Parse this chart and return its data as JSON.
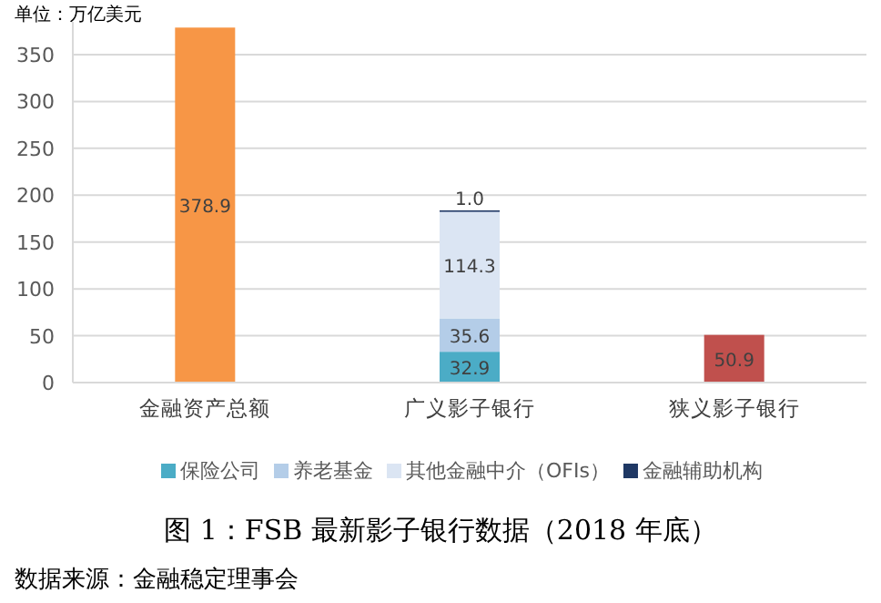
{
  "chart_data": {
    "type": "bar",
    "stacked": true,
    "title": "图 1：FSB 最新影子银行数据（2018 年底）",
    "ylabel": "单位：万亿美元",
    "categories": [
      "金融资产总额",
      "广义影子银行",
      "狭义影子银行"
    ],
    "series": [
      {
        "color": "#f79646",
        "values": [
          378.9,
          null,
          null
        ],
        "value_labels": [
          "378.9",
          null,
          null
        ]
      },
      {
        "name": "保险公司",
        "color": "#4bacc6",
        "values": [
          null,
          32.9,
          null
        ],
        "value_labels": [
          null,
          "32.9",
          null
        ]
      },
      {
        "name": "养老基金",
        "color": "#b4cde8",
        "values": [
          null,
          35.6,
          null
        ],
        "value_labels": [
          null,
          "35.6",
          null
        ]
      },
      {
        "name": "其他金融中介（OFIs）",
        "color": "#dbe5f3",
        "values": [
          null,
          114.3,
          null
        ],
        "value_labels": [
          null,
          "114.3",
          null
        ]
      },
      {
        "name": "金融辅助机构",
        "color": "#1f3864",
        "values": [
          null,
          1.0,
          null
        ],
        "value_labels": [
          null,
          "1.0",
          null
        ]
      },
      {
        "color": "#c0504d",
        "values": [
          null,
          null,
          50.9
        ],
        "value_labels": [
          null,
          null,
          "50.9"
        ]
      }
    ],
    "ylim": [
      0,
      385
    ],
    "yticks": [
      0,
      50,
      100,
      150,
      200,
      250,
      300,
      350
    ],
    "grid": "y",
    "legend": "bottom",
    "annotations": [
      "数据来源：金融稳定理事会"
    ]
  }
}
